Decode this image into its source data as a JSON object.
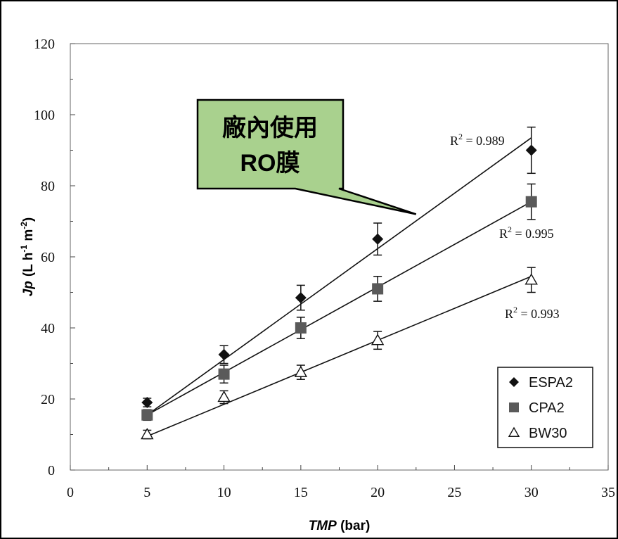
{
  "chart_data": {
    "type": "scatter",
    "xlabel": "TMP",
    "xlabel_unit": " (bar)",
    "ylabel": "Jp",
    "ylabel_unit_parts": [
      "(L h",
      "-1",
      " m",
      "-2",
      ")"
    ],
    "xlim": [
      0,
      35
    ],
    "ylim": [
      0,
      120
    ],
    "xticks": [
      0,
      5,
      10,
      15,
      20,
      25,
      30,
      35
    ],
    "yticks": [
      0,
      20,
      40,
      60,
      80,
      100,
      120
    ],
    "grid": false,
    "legend_position": "bottom-right",
    "series": [
      {
        "name": "ESPA2",
        "marker": "diamond",
        "x": [
          5,
          10,
          15,
          20,
          30
        ],
        "y": [
          19,
          32.5,
          48.5,
          65,
          90
        ],
        "err": [
          1.2,
          2.5,
          3.5,
          4.5,
          6.5
        ],
        "fit": {
          "x": [
            5,
            30
          ],
          "y": [
            15.5,
            93.5
          ]
        },
        "r2_label": "R² = 0.989",
        "r2_label_parts": {
          "pre": "R",
          "sup": "2",
          "post": " = 0.989"
        }
      },
      {
        "name": "CPA2",
        "marker": "square",
        "x": [
          5,
          10,
          15,
          20,
          30
        ],
        "y": [
          15.5,
          27,
          40,
          51,
          75.5
        ],
        "err": [
          1.5,
          2.5,
          3,
          3.5,
          5
        ],
        "fit": {
          "x": [
            5,
            30
          ],
          "y": [
            15.5,
            75.5
          ]
        },
        "r2_label": "R² = 0.995",
        "r2_label_parts": {
          "pre": "R",
          "sup": "2",
          "post": " = 0.995"
        }
      },
      {
        "name": "BW30",
        "marker": "triangle-open",
        "x": [
          5,
          10,
          15,
          20,
          30
        ],
        "y": [
          10,
          20.5,
          27.5,
          36.5,
          53.5
        ],
        "err": [
          1.2,
          1.8,
          2,
          2.5,
          3.5
        ],
        "fit": {
          "x": [
            5,
            30
          ],
          "y": [
            9.5,
            54.5
          ]
        },
        "r2_label": "R² = 0.993",
        "r2_label_parts": {
          "pre": "R",
          "sup": "2",
          "post": " = 0.993"
        }
      }
    ],
    "annotation": {
      "lines": [
        "廠內使用",
        "RO膜"
      ],
      "fill": "#a9d18e",
      "border": "#000000",
      "points_to": {
        "x": 22.5,
        "y": 72
      }
    }
  }
}
